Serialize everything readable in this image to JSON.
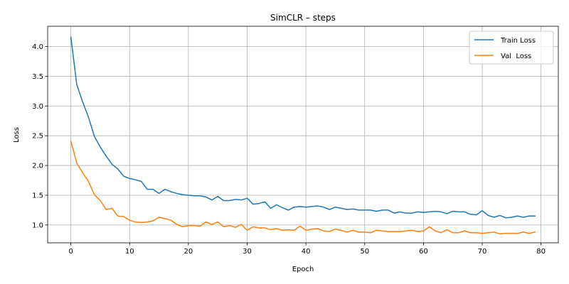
{
  "chart_data": {
    "type": "line",
    "title": "SimCLR – steps",
    "xlabel": "Epoch",
    "ylabel": "Loss",
    "xlim": [
      -3.95,
      82.95
    ],
    "ylim": [
      0.7,
      4.34
    ],
    "xticks": [
      0,
      10,
      20,
      30,
      40,
      50,
      60,
      70,
      80
    ],
    "yticks": [
      1.0,
      1.5,
      2.0,
      2.5,
      3.0,
      3.5,
      4.0
    ],
    "ytick_labels": [
      "1.0",
      "1.5",
      "2.0",
      "2.5",
      "3.0",
      "3.5",
      "4.0"
    ],
    "grid": true,
    "legend_position": "top-right",
    "series": [
      {
        "name": "Train Loss",
        "color": "#1f77b4",
        "values": [
          4.16,
          3.36,
          3.07,
          2.81,
          2.49,
          2.31,
          2.16,
          2.02,
          1.94,
          1.82,
          1.78,
          1.76,
          1.73,
          1.6,
          1.6,
          1.53,
          1.6,
          1.56,
          1.53,
          1.51,
          1.5,
          1.49,
          1.49,
          1.47,
          1.42,
          1.48,
          1.41,
          1.41,
          1.43,
          1.42,
          1.45,
          1.35,
          1.36,
          1.39,
          1.28,
          1.34,
          1.29,
          1.25,
          1.3,
          1.31,
          1.3,
          1.31,
          1.32,
          1.3,
          1.26,
          1.3,
          1.28,
          1.26,
          1.27,
          1.25,
          1.25,
          1.25,
          1.23,
          1.25,
          1.25,
          1.2,
          1.22,
          1.2,
          1.2,
          1.22,
          1.21,
          1.22,
          1.23,
          1.22,
          1.19,
          1.23,
          1.22,
          1.22,
          1.18,
          1.17,
          1.24,
          1.16,
          1.13,
          1.16,
          1.12,
          1.13,
          1.15,
          1.13,
          1.15,
          1.15
        ]
      },
      {
        "name": "Val  Loss",
        "color": "#ff7f0e",
        "values": [
          2.41,
          2.04,
          1.88,
          1.73,
          1.51,
          1.41,
          1.26,
          1.28,
          1.15,
          1.14,
          1.08,
          1.05,
          1.04,
          1.05,
          1.07,
          1.13,
          1.11,
          1.08,
          1.01,
          0.97,
          0.99,
          0.99,
          0.98,
          1.05,
          1.01,
          1.05,
          0.97,
          0.99,
          0.96,
          1.01,
          0.91,
          0.97,
          0.95,
          0.95,
          0.92,
          0.94,
          0.91,
          0.92,
          0.91,
          0.98,
          0.91,
          0.93,
          0.94,
          0.9,
          0.89,
          0.93,
          0.91,
          0.88,
          0.91,
          0.88,
          0.88,
          0.87,
          0.91,
          0.9,
          0.89,
          0.89,
          0.89,
          0.9,
          0.91,
          0.89,
          0.9,
          0.97,
          0.9,
          0.87,
          0.92,
          0.87,
          0.87,
          0.9,
          0.87,
          0.87,
          0.86,
          0.87,
          0.88,
          0.85,
          0.86,
          0.86,
          0.86,
          0.88,
          0.86,
          0.88
        ]
      }
    ]
  }
}
